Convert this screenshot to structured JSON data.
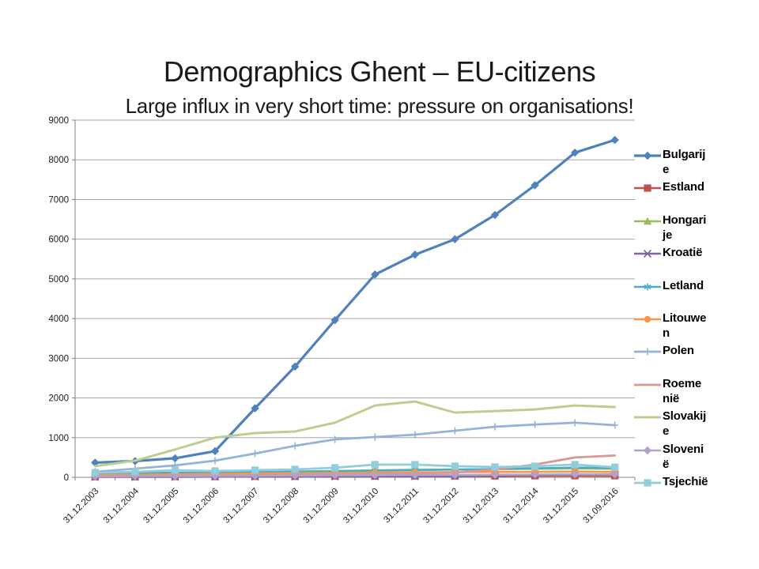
{
  "chart_data": {
    "type": "line",
    "title": "Demographics Ghent – EU-citizens",
    "subtitle": "Large influx in very short time: pressure on organisations!",
    "categories": [
      "31.12.2003",
      "31.12.2004",
      "31.12.2005",
      "31.12.2006",
      "31.12.2007",
      "31.12.2008",
      "31.12.2009",
      "31.12.2010",
      "31.12.2011",
      "31.12.2012",
      "31.12.2013",
      "31.12.2014",
      "31.12.2015",
      "31.09.2016"
    ],
    "ylim": [
      0,
      9000
    ],
    "yticks": [
      0,
      1000,
      2000,
      3000,
      4000,
      5000,
      6000,
      7000,
      8000,
      9000
    ],
    "grid": true,
    "legend_position": "right",
    "gridline_color": "#A6A6A6",
    "axis_color": "#808080",
    "series": [
      {
        "name": "Bulgarije",
        "display": "Bulgarij\ne",
        "color": "#4F81BD",
        "marker": "diamond",
        "line_width": 3.2,
        "values": [
          370,
          410,
          480,
          660,
          1740,
          2790,
          3960,
          5110,
          5610,
          6000,
          6610,
          7360,
          8180,
          8500
        ]
      },
      {
        "name": "Estland",
        "display": "Estland",
        "color": "#C0504D",
        "marker": "square",
        "line_width": 2.6,
        "values": [
          15,
          15,
          20,
          20,
          25,
          25,
          30,
          30,
          35,
          35,
          35,
          40,
          40,
          40
        ]
      },
      {
        "name": "Hongarije",
        "display": "Hongari\nje",
        "color": "#9BBB59",
        "marker": "triangle",
        "line_width": 2.6,
        "values": [
          80,
          90,
          100,
          115,
          130,
          145,
          160,
          175,
          190,
          195,
          205,
          215,
          225,
          215
        ]
      },
      {
        "name": "Kroatië",
        "display": "Kroatië",
        "color": "#8064A2",
        "marker": "x",
        "line_width": 2.6,
        "values": [
          10,
          10,
          10,
          15,
          15,
          20,
          20,
          25,
          25,
          30,
          50,
          60,
          70,
          75
        ]
      },
      {
        "name": "Letland",
        "display": "Letland",
        "color": "#4BACC6",
        "marker": "asterisk",
        "line_width": 2.6,
        "values": [
          100,
          105,
          115,
          120,
          130,
          140,
          155,
          170,
          185,
          195,
          210,
          225,
          245,
          235
        ]
      },
      {
        "name": "Litouwen",
        "display": "Litouwe\nn",
        "color": "#F79646",
        "marker": "circle",
        "line_width": 2.6,
        "values": [
          60,
          65,
          75,
          85,
          95,
          105,
          110,
          120,
          130,
          130,
          135,
          140,
          145,
          135
        ]
      },
      {
        "name": "Polen",
        "display": "Polen",
        "color": "#95B3D7",
        "marker": "plus",
        "line_width": 2.8,
        "values": [
          140,
          220,
          300,
          420,
          600,
          795,
          955,
          1015,
          1075,
          1175,
          1275,
          1330,
          1375,
          1315
        ]
      },
      {
        "name": "Roemenië",
        "display": "Roeme\nnië",
        "color": "#D99694",
        "marker": "none",
        "line_width": 2.8,
        "values": [
          30,
          35,
          40,
          50,
          60,
          70,
          80,
          90,
          100,
          120,
          200,
          320,
          500,
          550
        ]
      },
      {
        "name": "Slovakije",
        "display": "Slovakij\ne",
        "color": "#BCCF8E",
        "marker": "none",
        "line_width": 3.0,
        "values": [
          280,
          420,
          700,
          1000,
          1115,
          1155,
          1375,
          1810,
          1910,
          1630,
          1670,
          1710,
          1810,
          1770
        ]
      },
      {
        "name": "Slovenië",
        "display": "Sloveni\në",
        "color": "#B2A2C7",
        "marker": "diamond",
        "line_width": 2.6,
        "values": [
          25,
          30,
          30,
          35,
          40,
          45,
          50,
          55,
          60,
          60,
          65,
          70,
          75,
          70
        ]
      },
      {
        "name": "Tsjechië",
        "display": "Tsjechië",
        "color": "#92CDDC",
        "marker": "square",
        "line_width": 2.8,
        "values": [
          120,
          140,
          180,
          160,
          180,
          200,
          240,
          320,
          320,
          280,
          260,
          280,
          320,
          255
        ]
      }
    ]
  }
}
